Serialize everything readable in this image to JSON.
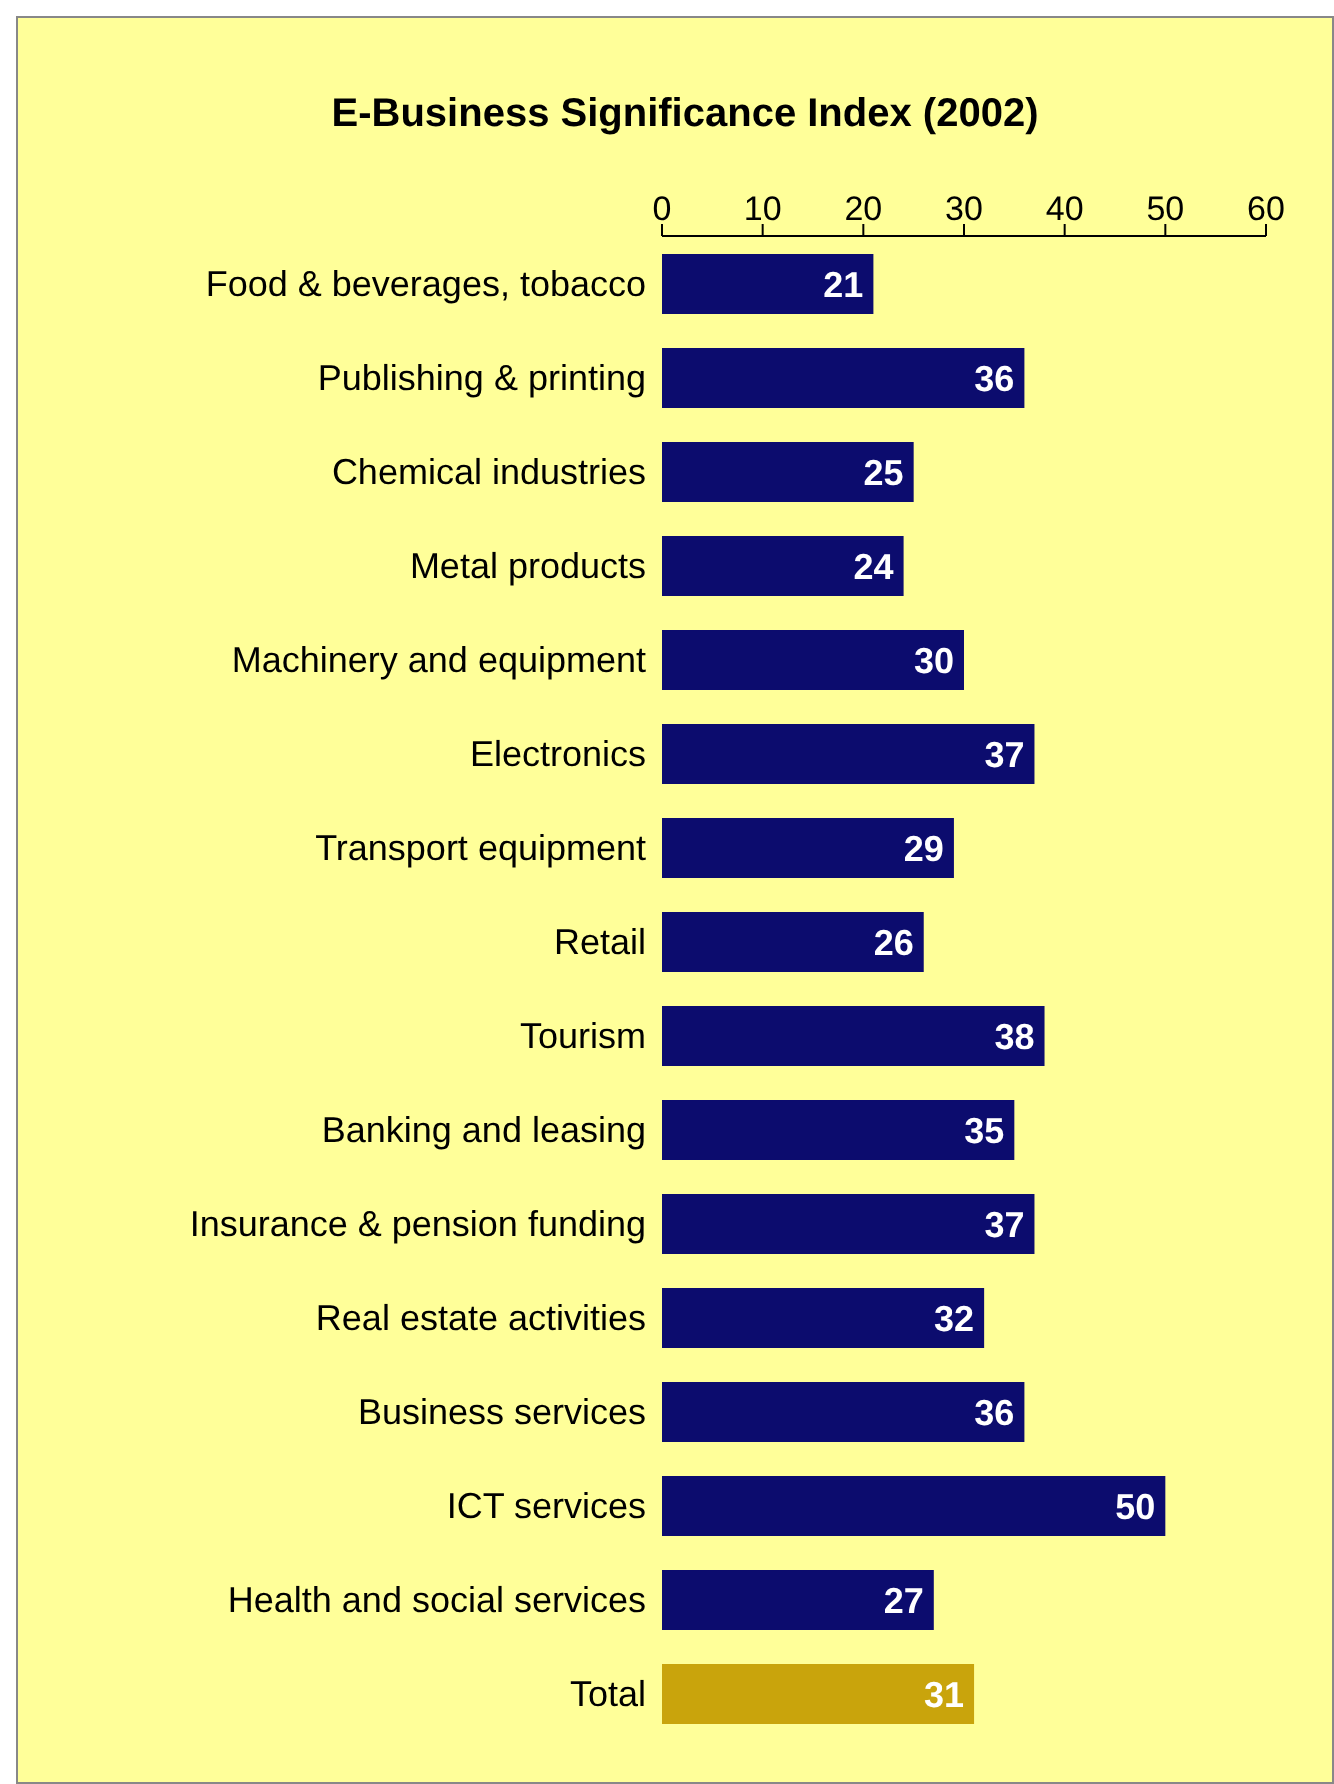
{
  "chart_data": {
    "type": "bar",
    "orientation": "horizontal",
    "title": "E-Business Significance Index (2002)",
    "categories": [
      "Food & beverages, tobacco",
      "Publishing & printing",
      "Chemical industries",
      "Metal products",
      "Machinery and equipment",
      "Electronics",
      "Transport equipment",
      "Retail",
      "Tourism",
      "Banking and leasing",
      "Insurance & pension funding",
      "Real estate activities",
      "Business services",
      "ICT services",
      "Health and social services",
      "Total"
    ],
    "values": [
      21,
      36,
      25,
      24,
      30,
      37,
      29,
      26,
      38,
      35,
      37,
      32,
      36,
      50,
      27,
      31
    ],
    "colors": [
      "#0c0c6e",
      "#0c0c6e",
      "#0c0c6e",
      "#0c0c6e",
      "#0c0c6e",
      "#0c0c6e",
      "#0c0c6e",
      "#0c0c6e",
      "#0c0c6e",
      "#0c0c6e",
      "#0c0c6e",
      "#0c0c6e",
      "#0c0c6e",
      "#0c0c6e",
      "#0c0c6e",
      "#c9a40c"
    ],
    "xlim": [
      0,
      60
    ],
    "xticks": [
      0,
      10,
      20,
      30,
      40,
      50,
      60
    ],
    "data_labels": true,
    "grid": false
  }
}
